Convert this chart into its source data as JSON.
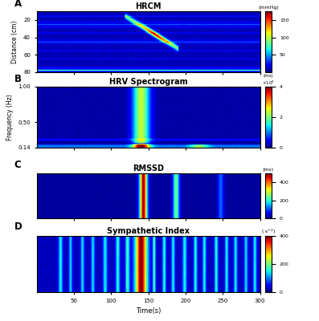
{
  "title_A": "HRCM",
  "title_B": "HRV Spectrogram",
  "title_C": "RMSSD",
  "title_D": "Sympathetic Index",
  "xlabel": "Time(s)",
  "ylabel_A": "Distance (cm)",
  "ylabel_B": "Frequency (Hz)",
  "colorbar_A_label": "(mmHg)",
  "colorbar_A_ticks": [
    50,
    100,
    150
  ],
  "colorbar_B_label": "(ms)",
  "colorbar_B_ticks": [
    0,
    2,
    4
  ],
  "colorbar_C_label": "(ms)",
  "colorbar_C_ticks": [
    0,
    200,
    400
  ],
  "colorbar_D_label": "( s⁻²)",
  "colorbar_D_ticks": [
    0,
    200,
    400
  ],
  "panel_labels": [
    "A",
    "B",
    "C",
    "D"
  ],
  "fig_bg": "#ffffff"
}
